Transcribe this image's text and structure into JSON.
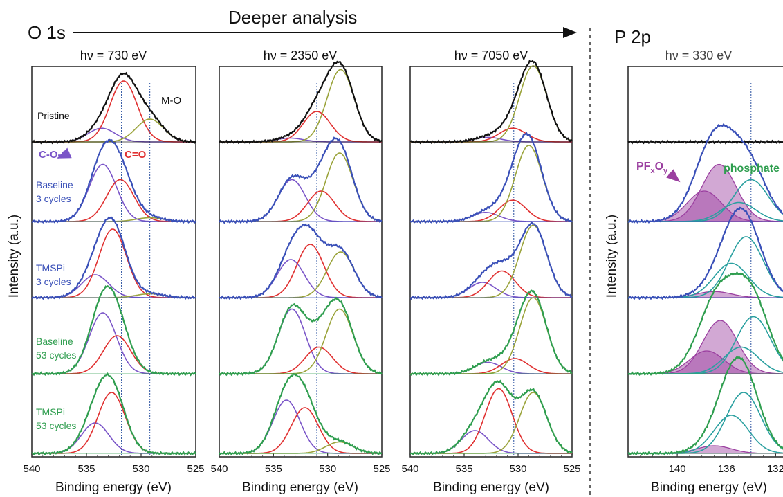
{
  "header": {
    "title": "Deeper analysis",
    "o1s_label": "O 1s",
    "p2p_label": "P 2p",
    "y_axis_label": "Intensity (a.u.)",
    "x_axis_label": "Binding energy (eV)"
  },
  "panels": [
    {
      "photon_energy": "hν = 730 eV"
    },
    {
      "photon_energy": "hν = 2350 eV"
    },
    {
      "photon_energy": "hν = 7050 eV"
    },
    {
      "photon_energy": "hν = 330 eV"
    }
  ],
  "annotations": {
    "m_o": "M-O",
    "c_o_c": "C-O-C",
    "c_double_o": "C=O",
    "pfxoy_main": "PF",
    "pfxoy_sub1": "x",
    "pfxoy_mid": "O",
    "pfxoy_sub2": "y",
    "phosphate": "phosphate"
  },
  "samples": [
    {
      "line1": "Pristine",
      "line2": ""
    },
    {
      "line1": "Baseline",
      "line2": "3 cycles"
    },
    {
      "line1": "TMSPi",
      "line2": "3 cycles"
    },
    {
      "line1": "Baseline",
      "line2": "53 cycles"
    },
    {
      "line1": "TMSPi",
      "line2": "53 cycles"
    }
  ],
  "colors": {
    "pristine": "#111111",
    "lipf6_blue": "#3a50b8",
    "green": "#2f9e4f",
    "cc_c_o": "#7a55c8",
    "c_double_o": "#e03030",
    "m_o_fit": "#9aa33a",
    "pfxoy": "#9b3fa0",
    "phosphate": "#2aa0a0",
    "dotted": "#3b5fa8"
  },
  "chart_data": [
    {
      "type": "line",
      "title": "hν = 730 eV",
      "xlabel": "Binding energy (eV)",
      "ylabel": "Intensity (a.u.)",
      "xlim": [
        540,
        525
      ],
      "xticks": [
        "540",
        "535",
        "530",
        "525"
      ],
      "reference_lines_eV": [
        531.8,
        529.2
      ],
      "series": [
        {
          "name": "Pristine",
          "components": [
            {
              "label": "C-O-C",
              "center": 533.6,
              "rel_height": 0.18
            },
            {
              "label": "C=O",
              "center": 531.6,
              "rel_height": 0.8
            },
            {
              "label": "M-O",
              "center": 529.2,
              "rel_height": 0.3
            }
          ]
        },
        {
          "name": "Baseline 3 cycles",
          "components": [
            {
              "label": "C-O-C",
              "center": 533.5,
              "rel_height": 0.75
            },
            {
              "label": "C=O",
              "center": 531.9,
              "rel_height": 0.55
            },
            {
              "label": "M-O",
              "center": 529.2,
              "rel_height": 0.05
            }
          ]
        },
        {
          "name": "TMSPi 3 cycles",
          "components": [
            {
              "label": "C-O-C",
              "center": 534.2,
              "rel_height": 0.3
            },
            {
              "label": "C=O",
              "center": 532.6,
              "rel_height": 0.9
            },
            {
              "label": "M-O",
              "center": 529.2,
              "rel_height": 0.05
            }
          ]
        },
        {
          "name": "Baseline 53 cycles",
          "components": [
            {
              "label": "C-O-C",
              "center": 533.5,
              "rel_height": 0.8
            },
            {
              "label": "C=O",
              "center": 532.2,
              "rel_height": 0.5
            }
          ]
        },
        {
          "name": "TMSPi 53 cycles",
          "components": [
            {
              "label": "C-O-C",
              "center": 534.2,
              "rel_height": 0.4
            },
            {
              "label": "C=O",
              "center": 532.7,
              "rel_height": 0.8
            }
          ]
        }
      ]
    },
    {
      "type": "line",
      "title": "hν = 2350 eV",
      "xlabel": "Binding energy (eV)",
      "xlim": [
        540,
        525
      ],
      "xticks": [
        "540",
        "535",
        "530",
        "525"
      ],
      "reference_lines_eV": [
        531.0
      ],
      "series": [
        {
          "name": "Pristine",
          "components": [
            {
              "label": "C-O-C",
              "center": 533.5,
              "rel_height": 0.05
            },
            {
              "label": "C=O",
              "center": 531.0,
              "rel_height": 0.4
            },
            {
              "label": "M-O",
              "center": 528.8,
              "rel_height": 0.95
            }
          ]
        },
        {
          "name": "Baseline 3 cycles",
          "components": [
            {
              "label": "C-O-C",
              "center": 533.3,
              "rel_height": 0.55
            },
            {
              "label": "C=O",
              "center": 530.6,
              "rel_height": 0.4
            },
            {
              "label": "M-O",
              "center": 528.9,
              "rel_height": 0.9
            }
          ]
        },
        {
          "name": "TMSPi 3 cycles",
          "components": [
            {
              "label": "C-O-C",
              "center": 533.4,
              "rel_height": 0.5
            },
            {
              "label": "C=O",
              "center": 531.6,
              "rel_height": 0.7
            },
            {
              "label": "M-O",
              "center": 528.8,
              "rel_height": 0.6
            }
          ]
        },
        {
          "name": "Baseline 53 cycles",
          "components": [
            {
              "label": "C-O-C",
              "center": 533.3,
              "rel_height": 0.85
            },
            {
              "label": "C=O",
              "center": 530.8,
              "rel_height": 0.35
            },
            {
              "label": "M-O",
              "center": 528.9,
              "rel_height": 0.85
            }
          ]
        },
        {
          "name": "TMSPi 53 cycles",
          "components": [
            {
              "label": "C-O-C",
              "center": 533.8,
              "rel_height": 0.7
            },
            {
              "label": "C=O",
              "center": 532.1,
              "rel_height": 0.6
            },
            {
              "label": "M-O",
              "center": 528.9,
              "rel_height": 0.15
            }
          ]
        }
      ]
    },
    {
      "type": "line",
      "title": "hν = 7050 eV",
      "xlabel": "Binding energy (eV)",
      "xlim": [
        540,
        525
      ],
      "xticks": [
        "540",
        "535",
        "530",
        "525"
      ],
      "reference_lines_eV": [
        530.4
      ],
      "series": [
        {
          "name": "Pristine",
          "components": [
            {
              "label": "C-O-C",
              "center": 532.8,
              "rel_height": 0.06
            },
            {
              "label": "C=O",
              "center": 530.5,
              "rel_height": 0.18
            },
            {
              "label": "M-O",
              "center": 528.6,
              "rel_height": 1.0
            }
          ]
        },
        {
          "name": "Baseline 3 cycles",
          "components": [
            {
              "label": "C-O-C",
              "center": 533.0,
              "rel_height": 0.12
            },
            {
              "label": "C=O",
              "center": 530.5,
              "rel_height": 0.28
            },
            {
              "label": "M-O",
              "center": 529.0,
              "rel_height": 1.0
            }
          ]
        },
        {
          "name": "TMSPi 3 cycles",
          "components": [
            {
              "label": "C-O-C",
              "center": 533.3,
              "rel_height": 0.2
            },
            {
              "label": "C=O",
              "center": 531.5,
              "rel_height": 0.35
            },
            {
              "label": "M-O",
              "center": 528.6,
              "rel_height": 0.95
            }
          ]
        },
        {
          "name": "Baseline 53 cycles",
          "components": [
            {
              "label": "C-O-C",
              "center": 532.8,
              "rel_height": 0.15
            },
            {
              "label": "C=O",
              "center": 530.3,
              "rel_height": 0.2
            },
            {
              "label": "M-O",
              "center": 528.6,
              "rel_height": 1.0
            }
          ]
        },
        {
          "name": "TMSPi 53 cycles",
          "components": [
            {
              "label": "C-O-C",
              "center": 534.0,
              "rel_height": 0.3
            },
            {
              "label": "C=O",
              "center": 531.8,
              "rel_height": 0.85
            },
            {
              "label": "M-O",
              "center": 528.6,
              "rel_height": 0.8
            }
          ]
        }
      ]
    },
    {
      "type": "line",
      "title": "hν = 330 eV",
      "xlabel": "Binding energy (eV)",
      "ylabel": "Intensity (a.u.)",
      "xlim": [
        144,
        130.5
      ],
      "xticks": [
        "140",
        "136",
        "132"
      ],
      "reference_lines_eV": [
        134.0
      ],
      "series": [
        {
          "name": "Pristine",
          "components": []
        },
        {
          "name": "Baseline 3 cycles",
          "components": [
            {
              "label": "PFxOy",
              "center": 136.6,
              "rel_height": 0.75
            },
            {
              "label": "PFxOy",
              "center": 137.8,
              "rel_height": 0.4
            },
            {
              "label": "phosphate",
              "center": 134.0,
              "rel_height": 0.55
            },
            {
              "label": "phosphate",
              "center": 135.0,
              "rel_height": 0.25
            }
          ]
        },
        {
          "name": "TMSPi 3 cycles",
          "components": [
            {
              "label": "PFxOy",
              "center": 137.0,
              "rel_height": 0.08
            },
            {
              "label": "phosphate",
              "center": 134.4,
              "rel_height": 0.8
            },
            {
              "label": "phosphate",
              "center": 135.6,
              "rel_height": 0.45
            }
          ]
        },
        {
          "name": "Baseline 53 cycles",
          "components": [
            {
              "label": "PFxOy",
              "center": 136.5,
              "rel_height": 0.7
            },
            {
              "label": "PFxOy",
              "center": 137.6,
              "rel_height": 0.3
            },
            {
              "label": "phosphate",
              "center": 133.8,
              "rel_height": 0.75
            },
            {
              "label": "phosphate",
              "center": 134.8,
              "rel_height": 0.35
            }
          ]
        },
        {
          "name": "TMSPi 53 cycles",
          "components": [
            {
              "label": "PFxOy",
              "center": 137.0,
              "rel_height": 0.1
            },
            {
              "label": "phosphate",
              "center": 134.6,
              "rel_height": 0.8
            },
            {
              "label": "phosphate",
              "center": 135.6,
              "rel_height": 0.5
            }
          ]
        }
      ]
    }
  ]
}
